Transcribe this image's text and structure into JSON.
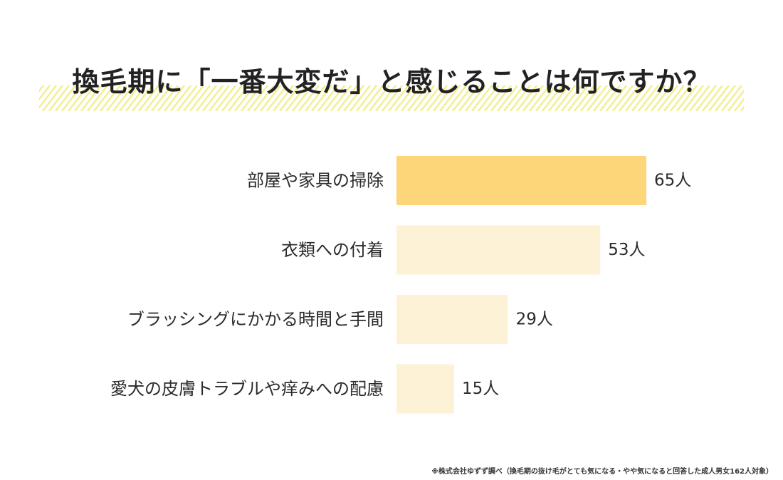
{
  "chart_data": {
    "type": "bar",
    "orientation": "horizontal",
    "title": "換毛期に「一番大変だ」と感じることは何ですか？",
    "categories": [
      "部屋や家具の掃除",
      "衣類への付着",
      "ブラッシングにかかる時間と手間",
      "愛犬の皮膚トラブルや痒みへの配慮"
    ],
    "values": [
      65,
      53,
      29,
      15
    ],
    "value_labels": [
      "65人",
      "53人",
      "29人",
      "15人"
    ],
    "unit": "人",
    "xlim": [
      0,
      65
    ],
    "grid": false,
    "legend": "none",
    "colors": {
      "highlight": "#FDD679",
      "default": "#FEF2D6",
      "title_stripes": "#F3EE8E"
    }
  },
  "footnote": "※株式会社ゆずず調べ（換毛期の抜け毛がとても気になる・やや気になると回答した成人男女162人対象）"
}
